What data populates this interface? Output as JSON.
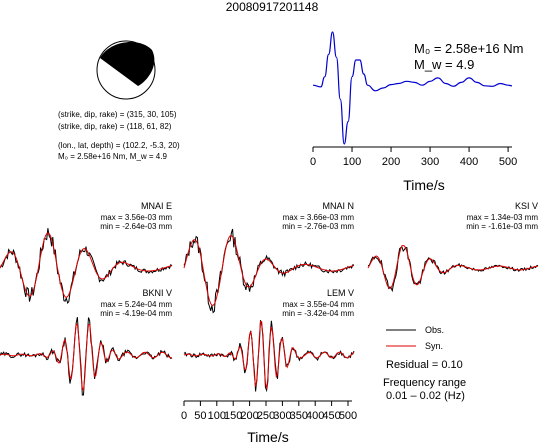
{
  "title": "20080917201148",
  "colors": {
    "observed": "#000000",
    "synthetic": "#dd0000",
    "stf": "#0000cc"
  },
  "info": {
    "line1": "(strike, dip, rake) = (315, 30, 105)",
    "line2": "(strike, dip, rake) = (118, 61, 82)",
    "line3": "(lon., lat, depth) = (102.2, -5.3, 20)",
    "line4": "M₀ = 2.58e+16 Nm, M_w = 4.9"
  },
  "stf_panel": {
    "m0_label": "M₀ = 2.58e+16 Nm",
    "mw_label": "M_w = 4.9",
    "xlabel": "Time/s",
    "xticks": [
      "0",
      "100",
      "200",
      "300",
      "400",
      "500"
    ]
  },
  "chart_data": {
    "type": "line",
    "stf": {
      "x": [
        0,
        20,
        30,
        40,
        50,
        60,
        70,
        80,
        90,
        100,
        110,
        120,
        130,
        140,
        160,
        180,
        200,
        220,
        240,
        260,
        280,
        300,
        320,
        340,
        360,
        380,
        400,
        420,
        440,
        460,
        480,
        500,
        510
      ],
      "y": [
        0.05,
        0.02,
        0.2,
        0.6,
        1.0,
        0.55,
        -0.2,
        -1.0,
        -0.6,
        0.2,
        0.5,
        0.5,
        0.25,
        0.05,
        -0.05,
        0.0,
        0.06,
        0.08,
        0.12,
        0.1,
        0.05,
        0.12,
        0.18,
        0.08,
        0.03,
        0.1,
        0.18,
        0.1,
        0.04,
        0.03,
        0.08,
        0.05,
        0.04
      ],
      "xlim": [
        0,
        510
      ]
    },
    "stations": [
      {
        "name": "MNAI E",
        "max": "max = 3.56e-03 mm",
        "min": "min = -2.64e-03 mm"
      },
      {
        "name": "MNAI N",
        "max": "max = 3.66e-03 mm",
        "min": "min = -2.76e-03 mm"
      },
      {
        "name": "KSI V",
        "max": "max = 1.34e-03 mm",
        "min": "min = -1.61e-03 mm"
      },
      {
        "name": "BKNI V",
        "max": "max = 5.24e-04 mm",
        "min": "min = -4.19e-04 mm"
      },
      {
        "name": "LEM V",
        "max": "max = 3.55e-04 mm",
        "min": "min = -3.42e-04 mm"
      }
    ],
    "waveform_xlabel": "Time/s",
    "waveform_xticks": [
      "0",
      "50",
      "100",
      "150",
      "200",
      "250",
      "300",
      "350",
      "400",
      "450",
      "500"
    ]
  },
  "legend": {
    "obs": "Obs.",
    "syn": "Syn."
  },
  "residual": "Residual = 0.10",
  "freq_label": "Frequency range",
  "freq_range": "0.01 – 0.02 (Hz)"
}
